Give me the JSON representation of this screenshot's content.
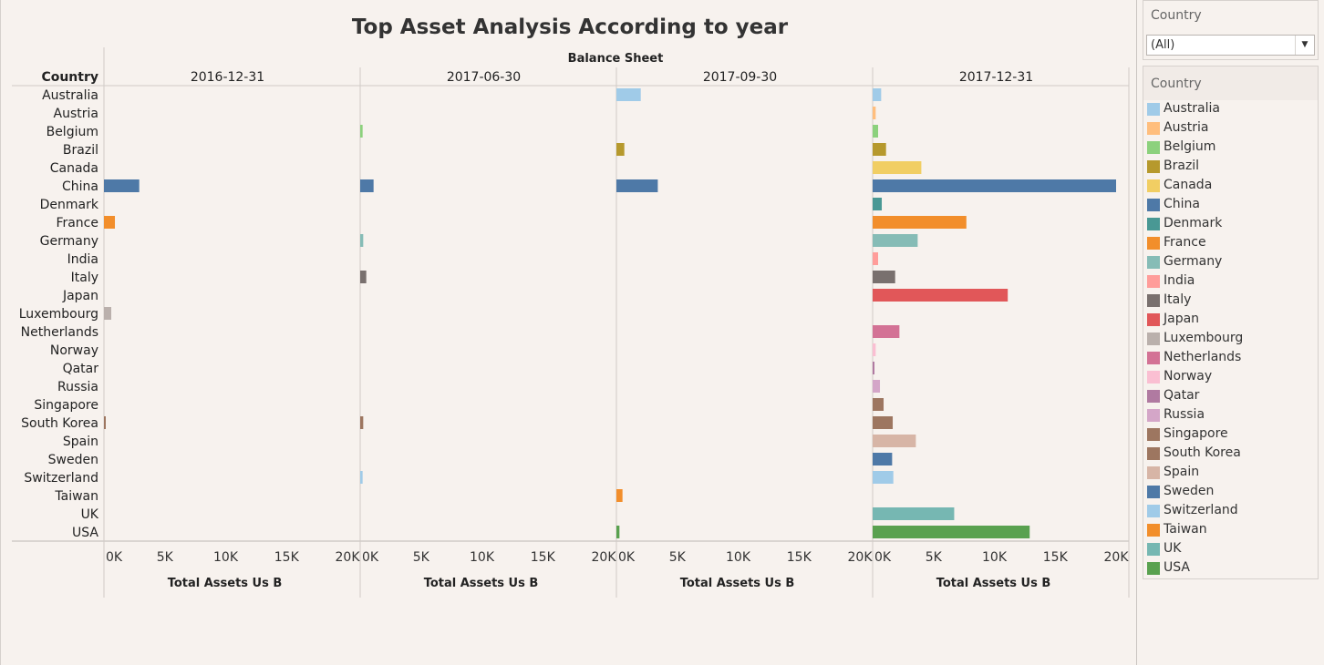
{
  "chart_data": {
    "type": "bar",
    "title": "Top Asset Analysis According to year",
    "column_header": "Balance Sheet",
    "row_header": "Country",
    "xlabel": "Total Assets Us B",
    "xlim": [
      0,
      20000
    ],
    "xticks": [
      0,
      5000,
      10000,
      15000,
      20000
    ],
    "xtick_labels": [
      "0K",
      "5K",
      "10K",
      "15K",
      "20K"
    ],
    "panels": [
      "2016-12-31",
      "2017-06-30",
      "2017-09-30",
      "2017-12-31"
    ],
    "categories": [
      "Australia",
      "Austria",
      "Belgium",
      "Brazil",
      "Canada",
      "China",
      "Denmark",
      "France",
      "Germany",
      "India",
      "Italy",
      "Japan",
      "Luxembourg",
      "Netherlands",
      "Norway",
      "Qatar",
      "Russia",
      "Singapore",
      "South Korea",
      "Spain",
      "Sweden",
      "Switzerland",
      "Taiwan",
      "UK",
      "USA"
    ],
    "series": [
      {
        "panel": "2016-12-31",
        "values": [
          null,
          null,
          null,
          null,
          null,
          2900,
          null,
          900,
          null,
          null,
          null,
          null,
          600,
          null,
          null,
          null,
          null,
          null,
          150,
          null,
          null,
          null,
          null,
          null,
          null
        ]
      },
      {
        "panel": "2017-06-30",
        "values": [
          null,
          null,
          200,
          null,
          null,
          1100,
          null,
          null,
          250,
          null,
          500,
          null,
          null,
          null,
          null,
          null,
          null,
          null,
          250,
          null,
          null,
          200,
          null,
          null,
          null
        ]
      },
      {
        "panel": "2017-09-30",
        "values": [
          2000,
          null,
          null,
          650,
          null,
          3400,
          null,
          null,
          null,
          null,
          null,
          null,
          null,
          null,
          null,
          null,
          null,
          null,
          null,
          null,
          null,
          null,
          500,
          null,
          250
        ]
      },
      {
        "panel": "2017-12-31",
        "values": [
          700,
          250,
          450,
          1100,
          4000,
          20000,
          750,
          7700,
          3700,
          450,
          1850,
          11100,
          null,
          2200,
          250,
          150,
          600,
          900,
          1650,
          3550,
          1600,
          1700,
          null,
          6700,
          12900
        ]
      }
    ],
    "colors": {
      "Australia": "#a0cbe8",
      "Austria": "#ffbe7d",
      "Belgium": "#8cd17d",
      "Brazil": "#b6992d",
      "Canada": "#f1ce63",
      "China": "#4e79a7",
      "Denmark": "#499894",
      "France": "#f28e2b",
      "Germany": "#86bcb6",
      "India": "#ff9d9a",
      "Italy": "#79706e",
      "Japan": "#e15759",
      "Luxembourg": "#bab0ac",
      "Netherlands": "#d37295",
      "Norway": "#fabfd2",
      "Qatar": "#b07aa1",
      "Russia": "#d4a6c8",
      "Singapore": "#9d7660",
      "South Korea": "#9d7660",
      "Spain": "#d7b5a6",
      "Sweden": "#4e79a7",
      "Switzerland": "#a0cbe8",
      "Taiwan": "#f28e2b",
      "UK": "#76b7b2",
      "USA": "#59a14f"
    },
    "grid": false,
    "legend": "right"
  },
  "filter": {
    "title": "Country",
    "selected": "(All)"
  },
  "legend": {
    "title": "Country",
    "items": [
      "Australia",
      "Austria",
      "Belgium",
      "Brazil",
      "Canada",
      "China",
      "Denmark",
      "France",
      "Germany",
      "India",
      "Italy",
      "Japan",
      "Luxembourg",
      "Netherlands",
      "Norway",
      "Qatar",
      "Russia",
      "Singapore",
      "South Korea",
      "Spain",
      "Sweden",
      "Switzerland",
      "Taiwan",
      "UK",
      "USA"
    ]
  }
}
